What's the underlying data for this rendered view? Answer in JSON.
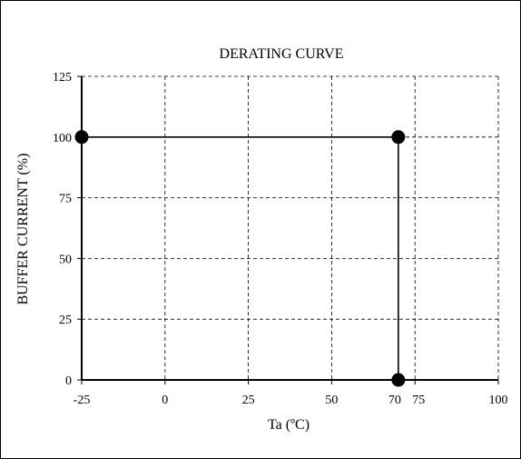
{
  "chart_data": {
    "type": "line",
    "title": "DERATING CURVE",
    "xlabel": "Ta (ºC)",
    "ylabel": "BUFFER CURRENT (%)",
    "xlim": [
      -25,
      100
    ],
    "ylim": [
      0,
      125
    ],
    "x_ticks": [
      -25,
      0,
      25,
      50,
      70,
      75,
      100
    ],
    "x_tick_labels": [
      "-25",
      "0",
      "25",
      "50",
      "70",
      "75",
      "100"
    ],
    "y_ticks": [
      0,
      25,
      50,
      75,
      100,
      125
    ],
    "y_tick_labels": [
      "0",
      "25",
      "50",
      "75",
      "100",
      "125"
    ],
    "grid": true,
    "grid_style": "dashed",
    "series": [
      {
        "x": [
          -25,
          70,
          70
        ],
        "y": [
          100,
          100,
          0
        ],
        "markers": "filled-circle"
      }
    ],
    "colors": {
      "line": "#000000",
      "grid": "#000000",
      "frame": "#000000",
      "background": "#ffffff"
    }
  }
}
